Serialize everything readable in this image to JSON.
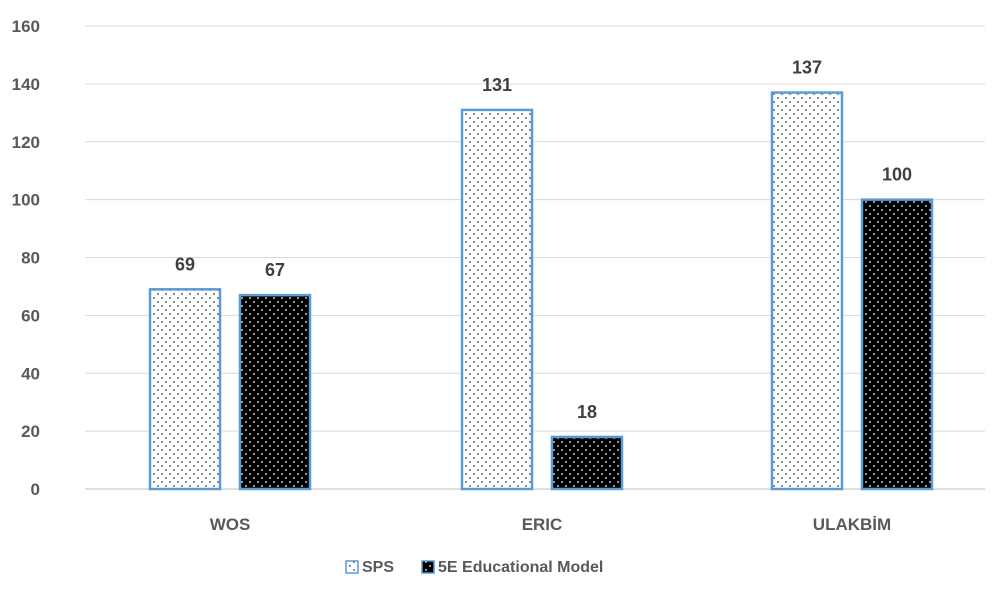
{
  "chart_data": {
    "type": "bar",
    "categories": [
      "WOS",
      "ERIC",
      "ULAKBİM"
    ],
    "series": [
      {
        "name": "SPS",
        "values": [
          69,
          131,
          137
        ],
        "fill": "dots-white",
        "stroke": "#5b9bd5"
      },
      {
        "name": "5E Educational Model",
        "values": [
          67,
          18,
          100
        ],
        "fill": "dots-black",
        "stroke": "#5b9bd5"
      }
    ],
    "ylim": [
      0,
      160
    ],
    "yticks": [
      0,
      20,
      40,
      60,
      80,
      100,
      120,
      140,
      160
    ],
    "grid": true,
    "legend": "bottom-center",
    "title": "",
    "xlabel": "",
    "ylabel": ""
  },
  "colors": {
    "bar_outline": "#5b9bd5",
    "gridline": "#d9d9d9",
    "axis_text": "#595959",
    "label_text": "#404040"
  }
}
